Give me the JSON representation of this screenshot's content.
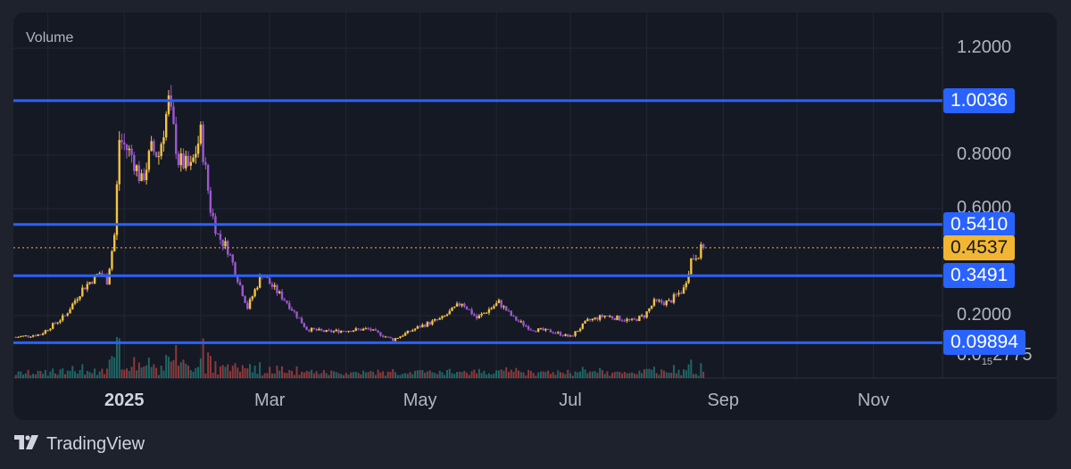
{
  "footer": {
    "brand": "TradingView",
    "logo_icon": "tradingview-logo-icon"
  },
  "colors": {
    "background": "#1e222d",
    "panel": "#151924",
    "grid": "#232733",
    "up": "#f5c242",
    "down": "#9b59d0",
    "hline": "#2962ff",
    "last_price": "#f2b632",
    "volume_up": "#26a69a",
    "volume_down": "#ef5350"
  },
  "chart_data": {
    "type": "candlestick",
    "title": "",
    "xlabel": "",
    "ylabel": "",
    "pane_label": "Volume",
    "x_ticks": [
      {
        "label": "2025",
        "bold": true
      },
      {
        "label": "Mar",
        "bold": false
      },
      {
        "label": "May",
        "bold": false
      },
      {
        "label": "Jul",
        "bold": false
      },
      {
        "label": "Sep",
        "bold": false
      },
      {
        "label": "Nov",
        "bold": false
      }
    ],
    "x_range": [
      "2024-11-17",
      "2025-11-29"
    ],
    "ylim": [
      0.0,
      1.3
    ],
    "y_ticks": [
      {
        "label": "1.2000",
        "value": 1.2
      },
      {
        "label": "0.8000",
        "value": 0.8
      },
      {
        "label": "0.6000",
        "value": 0.6
      },
      {
        "label": "0.2000",
        "value": 0.2
      }
    ],
    "min_label": {
      "pre": "0.0",
      "sub": "15",
      "post": "2775"
    },
    "horizontal_lines": [
      {
        "label": "1.0036",
        "value": 1.0036
      },
      {
        "label": "0.5410",
        "value": 0.541
      },
      {
        "label": "0.3491",
        "value": 0.3491
      },
      {
        "label": "0.09894",
        "value": 0.09894
      }
    ],
    "last_price": {
      "label": "0.4537",
      "value": 0.4537
    },
    "price_anchors": [
      [
        "2024-11-18",
        0.12
      ],
      [
        "2024-11-28",
        0.13
      ],
      [
        "2024-12-08",
        0.2
      ],
      [
        "2024-12-15",
        0.3
      ],
      [
        "2024-12-22",
        0.36
      ],
      [
        "2024-12-25",
        0.33
      ],
      [
        "2024-12-28",
        0.5
      ],
      [
        "2024-12-30",
        0.86
      ],
      [
        "2025-01-04",
        0.8
      ],
      [
        "2025-01-08",
        0.7
      ],
      [
        "2025-01-12",
        0.82
      ],
      [
        "2025-01-15",
        0.8
      ],
      [
        "2025-01-19",
        1.0
      ],
      [
        "2025-01-23",
        0.78
      ],
      [
        "2025-01-28",
        0.75
      ],
      [
        "2025-02-01",
        0.88
      ],
      [
        "2025-02-05",
        0.6
      ],
      [
        "2025-02-08",
        0.5
      ],
      [
        "2025-02-12",
        0.45
      ],
      [
        "2025-02-20",
        0.23
      ],
      [
        "2025-02-26",
        0.36
      ],
      [
        "2025-03-01",
        0.32
      ],
      [
        "2025-03-08",
        0.25
      ],
      [
        "2025-03-16",
        0.15
      ],
      [
        "2025-03-24",
        0.14
      ],
      [
        "2025-04-10",
        0.15
      ],
      [
        "2025-04-20",
        0.11
      ],
      [
        "2025-05-01",
        0.16
      ],
      [
        "2025-05-10",
        0.19
      ],
      [
        "2025-05-18",
        0.25
      ],
      [
        "2025-05-24",
        0.19
      ],
      [
        "2025-06-02",
        0.25
      ],
      [
        "2025-06-08",
        0.19
      ],
      [
        "2025-06-15",
        0.15
      ],
      [
        "2025-06-24",
        0.14
      ],
      [
        "2025-07-01",
        0.12
      ],
      [
        "2025-07-08",
        0.18
      ],
      [
        "2025-07-15",
        0.2
      ],
      [
        "2025-07-26",
        0.18
      ],
      [
        "2025-07-31",
        0.2
      ],
      [
        "2025-08-04",
        0.25
      ],
      [
        "2025-08-10",
        0.25
      ],
      [
        "2025-08-16",
        0.3
      ],
      [
        "2025-08-19",
        0.41
      ],
      [
        "2025-08-24",
        0.4537
      ]
    ]
  }
}
